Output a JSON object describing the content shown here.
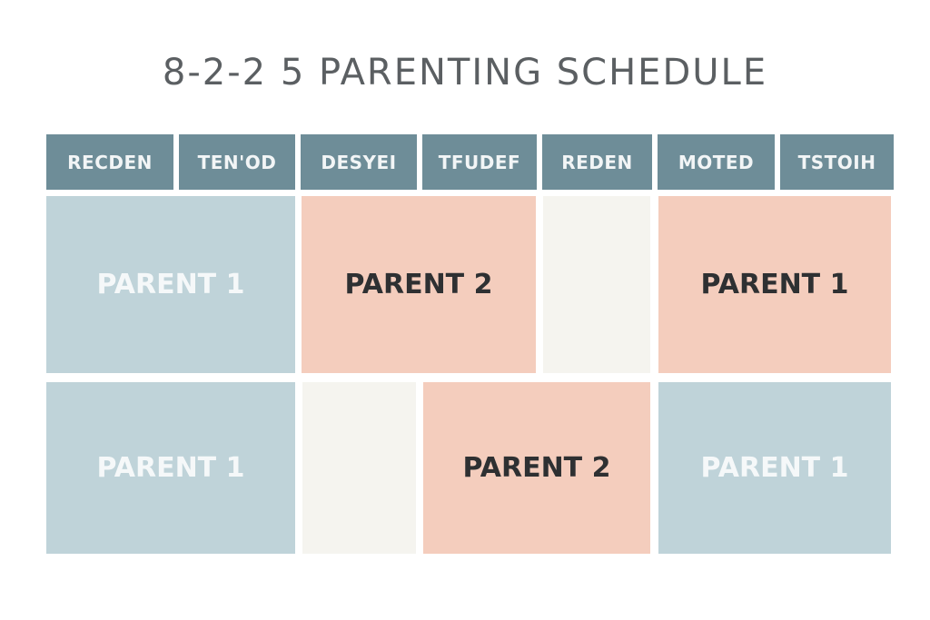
{
  "title": "8-2-2 5 PARENTING SCHEDULE",
  "headers": [
    "RECDEN",
    "TEN'OD",
    "DESYEI",
    "TFUDEF",
    "REDEN",
    "MOTED",
    "TSTOIH"
  ],
  "rows": [
    [
      {
        "label": "PARENT 1",
        "parent": "parent-1"
      },
      {
        "label": "PARENT 2",
        "parent": "parent-2"
      },
      {
        "label": "",
        "parent": "none"
      },
      {
        "label": "PARENT 1",
        "parent": "parent-1-peach"
      }
    ],
    [
      {
        "label": "PARENT 1",
        "parent": "parent-1"
      },
      {
        "label": "",
        "parent": "none"
      },
      {
        "label": "PARENT 2",
        "parent": "parent-2"
      },
      {
        "label": "PARENT 1",
        "parent": "parent-1"
      }
    ]
  ],
  "colors": {
    "header": "#6e8d98",
    "parent_1": "#bfd3d9",
    "parent_2": "#f4cdbd",
    "blank": "#f5f4ef",
    "title": "#5b5f62"
  }
}
